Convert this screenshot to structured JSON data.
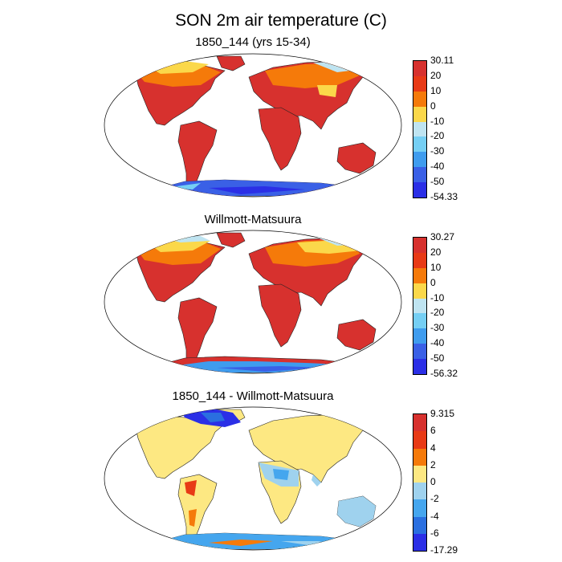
{
  "figure": {
    "title": "SON 2m air temperature (C)"
  },
  "panels": [
    {
      "title": "1850_144 (yrs 15-34)",
      "colorbar": {
        "labels": [
          "30.11",
          "20",
          "10",
          "0",
          "-10",
          "-20",
          "-30",
          "-40",
          "-50",
          "-54.33"
        ],
        "colors": [
          "#d7312e",
          "#e83a16",
          "#f57a0a",
          "#fbd84a",
          "#bfe4f1",
          "#75cff4",
          "#3f9cee",
          "#3a60e6",
          "#2b2fe6"
        ]
      }
    },
    {
      "title": "Willmott-Matsuura",
      "colorbar": {
        "labels": [
          "30.27",
          "20",
          "10",
          "0",
          "-10",
          "-20",
          "-30",
          "-40",
          "-50",
          "-56.32"
        ],
        "colors": [
          "#d7312e",
          "#e83a16",
          "#f57a0a",
          "#fbd84a",
          "#bfe4f1",
          "#75cff4",
          "#3f9cee",
          "#3a60e6",
          "#2b2fe6"
        ]
      }
    },
    {
      "title": "1850_144 - Willmott-Matsuura",
      "colorbar": {
        "labels": [
          "9.315",
          "6",
          "4",
          "2",
          "0",
          "-2",
          "-4",
          "-6",
          "-17.29"
        ],
        "colors": [
          "#d7312e",
          "#e83a16",
          "#f57a0a",
          "#fde882",
          "#9fd2ee",
          "#45a6ee",
          "#2a6fe0",
          "#2b2fe6"
        ]
      }
    }
  ]
}
